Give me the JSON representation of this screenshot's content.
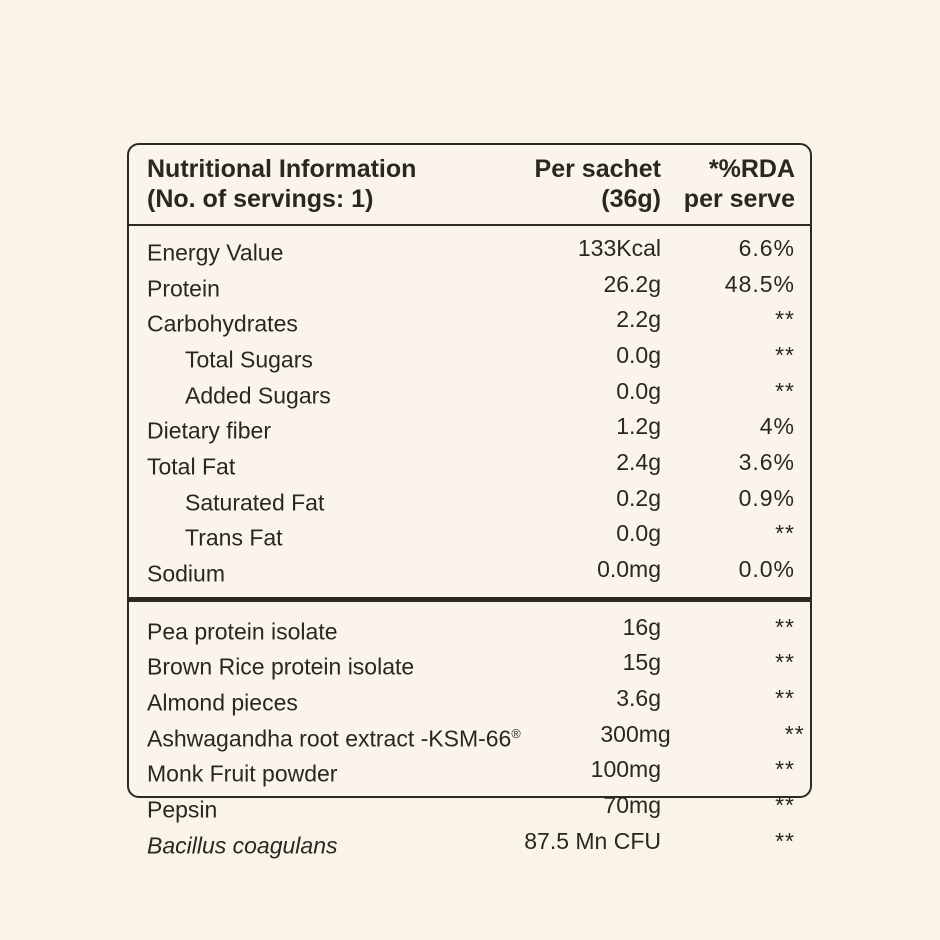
{
  "page": {
    "background_color": "#faf3e8",
    "text_color": "#29281f",
    "border_color": "#2b2a23"
  },
  "table": {
    "header": {
      "title_line1": "Nutritional Information",
      "title_line2": "(No. of servings: 1)",
      "per_sachet_line1": "Per sachet",
      "per_sachet_line2": "(36g)",
      "rda_line1": "*%RDA",
      "rda_line2": "per serve"
    },
    "nutrients": [
      {
        "label": "Energy Value",
        "amount": "133Kcal",
        "rda": "6.6%"
      },
      {
        "label": "Protein",
        "amount": "26.2g",
        "rda": "48.5%"
      },
      {
        "label": "Carbohydrates",
        "amount": "2.2g",
        "rda": "**"
      },
      {
        "label": "Total Sugars",
        "amount": "0.0g",
        "rda": "**",
        "indent": true
      },
      {
        "label": "Added Sugars",
        "amount": "0.0g",
        "rda": "**",
        "indent": true
      },
      {
        "label": "Dietary fiber",
        "amount": "1.2g",
        "rda": "4%"
      },
      {
        "label": "Total Fat",
        "amount": "2.4g",
        "rda": "3.6%"
      },
      {
        "label": "Saturated Fat",
        "amount": "0.2g",
        "rda": "0.9%",
        "indent": true
      },
      {
        "label": "Trans Fat",
        "amount": "0.0g",
        "rda": "**",
        "indent": true
      },
      {
        "label": "Sodium",
        "amount": "0.0mg",
        "rda": "0.0%"
      }
    ],
    "ingredients": [
      {
        "label": "Pea protein isolate",
        "amount": "16g",
        "rda": "**"
      },
      {
        "label": "Brown Rice protein isolate",
        "amount": "15g",
        "rda": "**"
      },
      {
        "label": "Almond pieces",
        "amount": "3.6g",
        "rda": "**"
      },
      {
        "label": "Ashwagandha root extract -KSM-66",
        "label_sup": "®",
        "amount": "300mg",
        "rda": "**"
      },
      {
        "label": "Monk Fruit powder",
        "amount": "100mg",
        "rda": "**"
      },
      {
        "label": "Pepsin",
        "amount": "70mg",
        "rda": "**"
      },
      {
        "label": "Bacillus coagulans",
        "amount": "87.5 Mn CFU",
        "rda": "**",
        "italic": true
      }
    ]
  }
}
